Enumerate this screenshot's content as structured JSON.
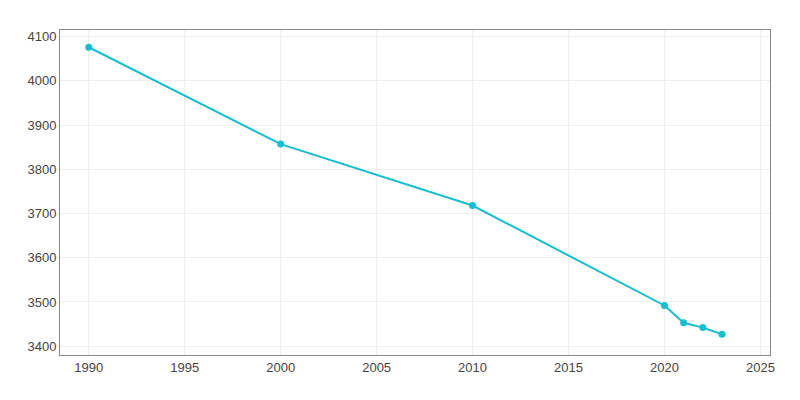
{
  "chart_data": {
    "type": "line",
    "x": [
      1990,
      2000,
      2010,
      2020,
      2021,
      2022,
      2023
    ],
    "values": [
      4076,
      3857,
      3718,
      3492,
      3453,
      3442,
      3427
    ],
    "color": "#17BECF",
    "marker": "circle",
    "xlim": [
      1988.5,
      2025.5
    ],
    "xticks": [
      1990,
      1995,
      2000,
      2005,
      2010,
      2015,
      2020,
      2025
    ],
    "ylim": [
      3380,
      4115
    ],
    "yticks": [
      3400,
      3500,
      3600,
      3700,
      3800,
      3900,
      4000,
      4100
    ],
    "grid": true
  }
}
